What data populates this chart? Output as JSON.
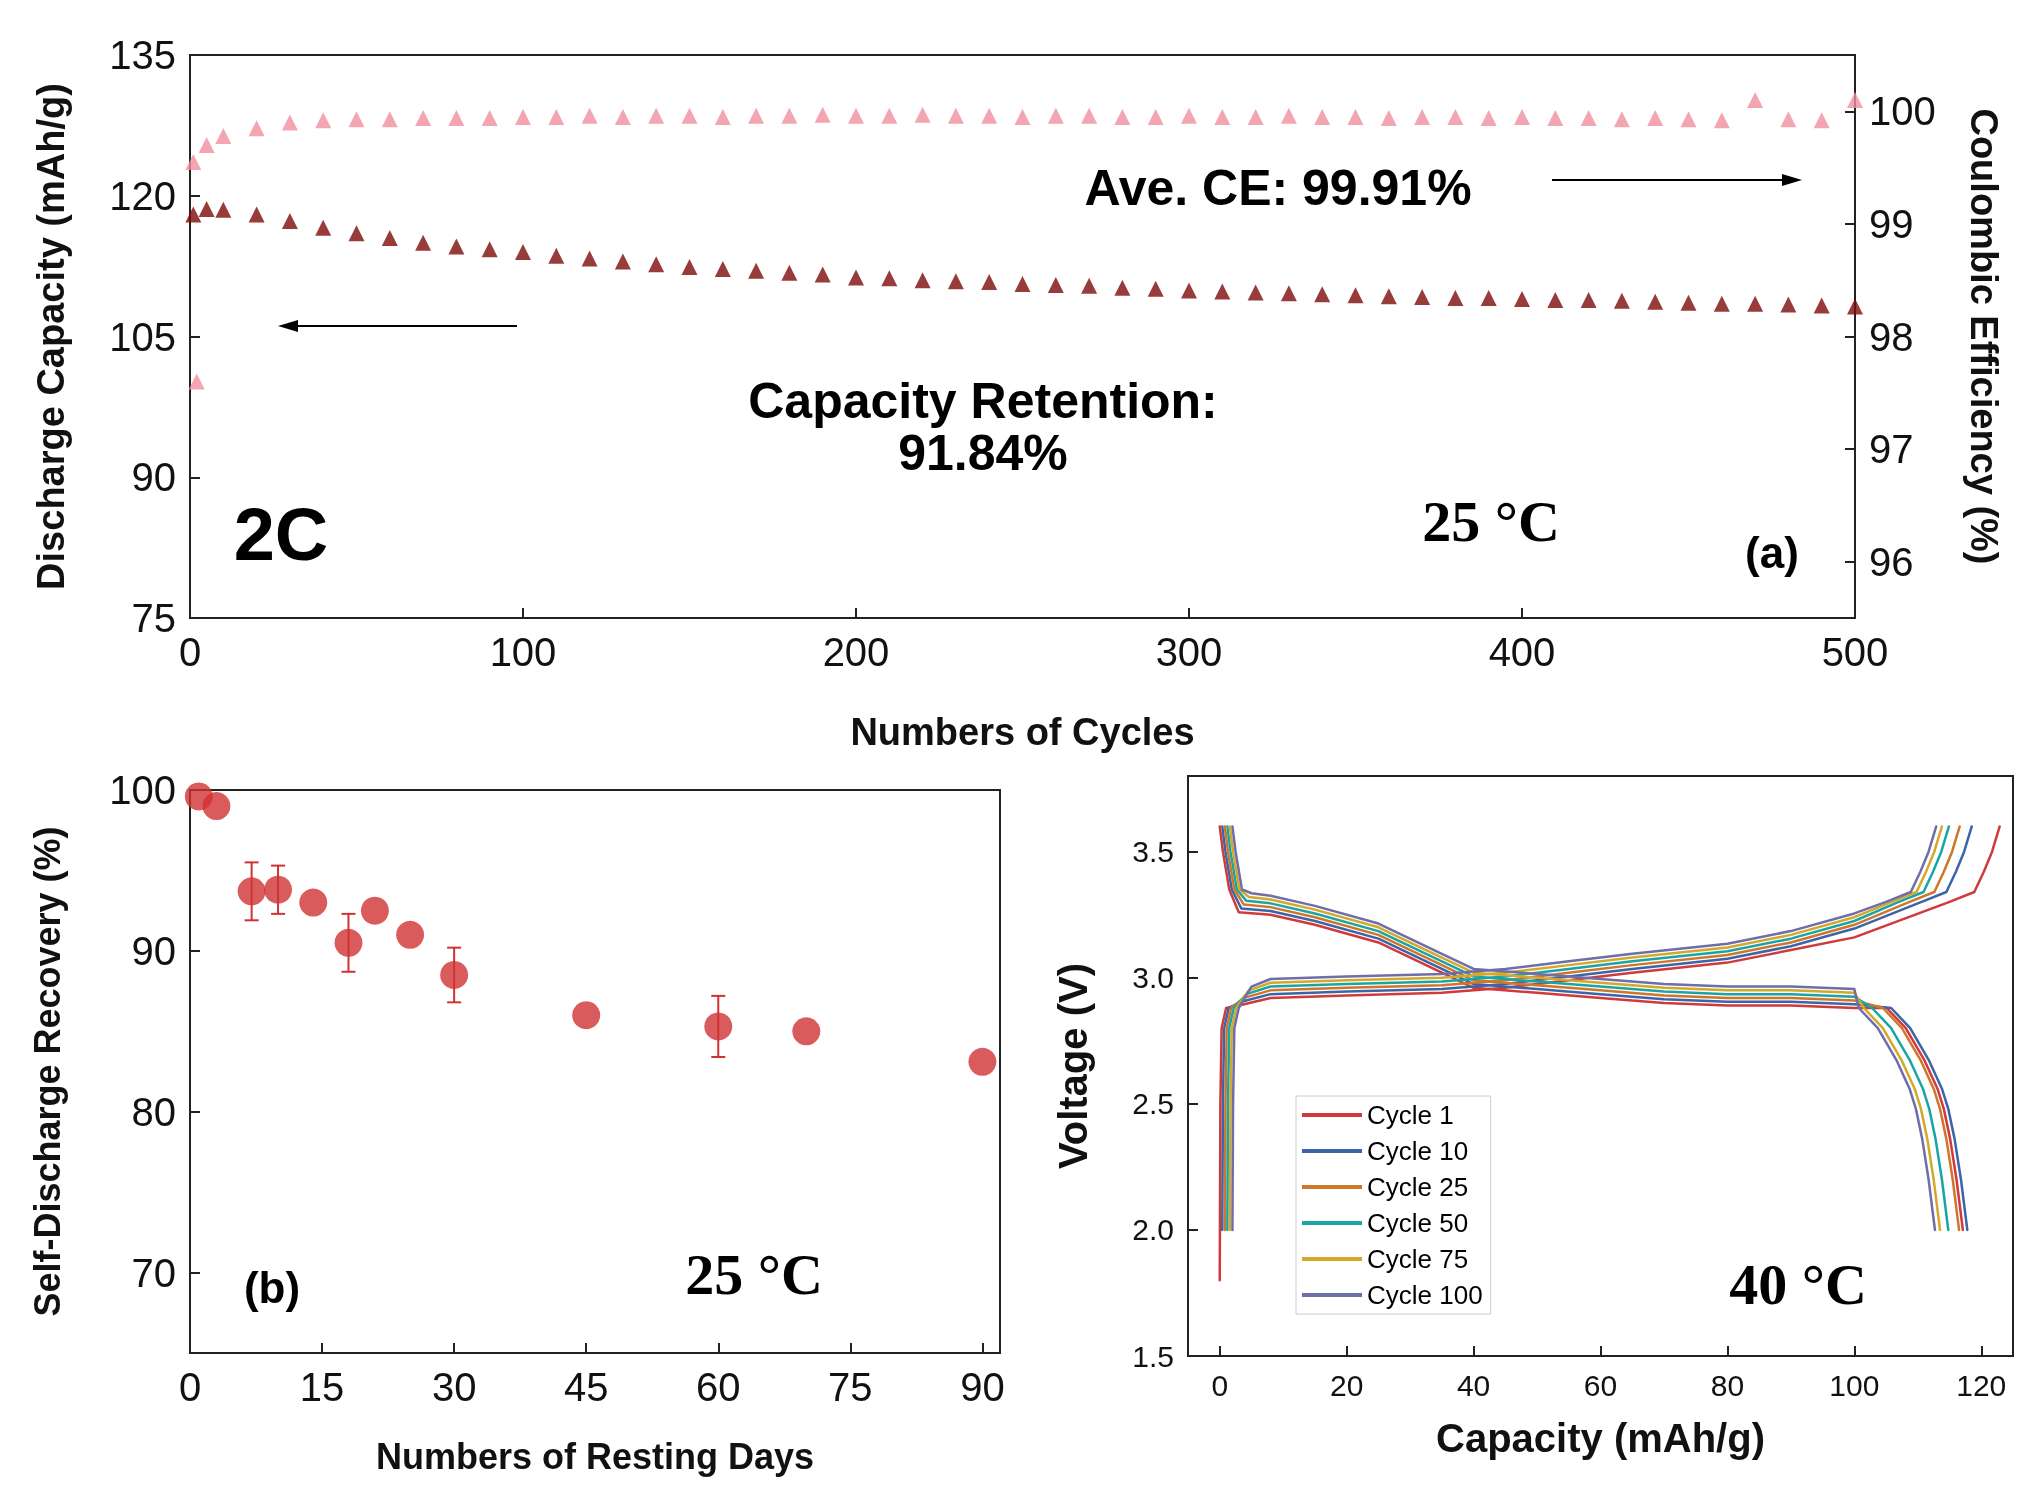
{
  "chart_data": [
    {
      "type": "scatter",
      "xlabel": "Numbers of Cycles",
      "ylabel": "Discharge Capacity (mAh/g)",
      "y2label": "Coulombic Efficiency (%)",
      "marker": "triangle",
      "xlim": [
        0,
        500
      ],
      "xticks": [
        0,
        100,
        200,
        300,
        400,
        500
      ],
      "ylim": [
        75,
        135
      ],
      "yticks": [
        75,
        90,
        105,
        120,
        135
      ],
      "y2lim": [
        95.5,
        100.5
      ],
      "y2ticks": [
        96,
        97,
        98,
        99,
        100
      ],
      "annotations": [
        "Ave. CE: 99.91%",
        "Capacity Retention:\n91.84%",
        "2C",
        "25 °C",
        "(a)"
      ],
      "series": [
        {
          "color": "#7d0a0a",
          "x": [
            1,
            5,
            10,
            20,
            30,
            40,
            50,
            60,
            70,
            80,
            90,
            100,
            110,
            120,
            130,
            140,
            150,
            160,
            170,
            180,
            190,
            200,
            210,
            220,
            230,
            240,
            250,
            260,
            270,
            280,
            290,
            300,
            310,
            320,
            330,
            340,
            350,
            360,
            370,
            380,
            390,
            400,
            410,
            420,
            430,
            440,
            450,
            460,
            470,
            480,
            490,
            500
          ],
          "values": [
            118.0,
            118.6,
            118.5,
            118.0,
            117.3,
            116.6,
            116.0,
            115.5,
            115.0,
            114.6,
            114.3,
            114.0,
            113.6,
            113.3,
            113.0,
            112.7,
            112.4,
            112.2,
            112.0,
            111.8,
            111.6,
            111.3,
            111.2,
            111.0,
            110.9,
            110.8,
            110.6,
            110.5,
            110.4,
            110.2,
            110.1,
            109.9,
            109.8,
            109.7,
            109.6,
            109.5,
            109.4,
            109.3,
            109.2,
            109.1,
            109.1,
            109.0,
            108.9,
            108.9,
            108.8,
            108.7,
            108.6,
            108.5,
            108.5,
            108.4,
            108.3,
            108.2
          ]
        },
        {
          "color": "#f0909f",
          "axis": "y2",
          "x": [
            1,
            2,
            5,
            10,
            20,
            30,
            40,
            50,
            60,
            70,
            80,
            90,
            100,
            110,
            120,
            130,
            140,
            150,
            160,
            170,
            180,
            190,
            200,
            210,
            220,
            230,
            240,
            250,
            260,
            270,
            280,
            290,
            300,
            310,
            320,
            330,
            340,
            350,
            360,
            370,
            380,
            390,
            400,
            410,
            420,
            430,
            440,
            450,
            460,
            470,
            480,
            490,
            500
          ],
          "values": [
            99.55,
            97.6,
            99.7,
            99.78,
            99.85,
            99.9,
            99.92,
            99.93,
            99.93,
            99.94,
            99.94,
            99.94,
            99.95,
            99.95,
            99.96,
            99.95,
            99.96,
            99.96,
            99.95,
            99.96,
            99.96,
            99.97,
            99.96,
            99.96,
            99.97,
            99.96,
            99.96,
            99.95,
            99.96,
            99.96,
            99.95,
            99.95,
            99.96,
            99.95,
            99.95,
            99.96,
            99.95,
            99.95,
            99.94,
            99.95,
            99.95,
            99.94,
            99.95,
            99.94,
            99.94,
            99.93,
            99.94,
            99.93,
            99.92,
            100.1,
            99.93,
            99.92,
            100.1
          ]
        }
      ]
    },
    {
      "type": "scatter",
      "xlabel": "Numbers of Resting Days",
      "ylabel": "Self-Discharge Recovery (%)",
      "marker": "circle",
      "xlim": [
        0,
        92
      ],
      "xticks": [
        0,
        15,
        30,
        45,
        60,
        75,
        90
      ],
      "ylim": [
        65,
        100
      ],
      "yticks": [
        70,
        80,
        90,
        100
      ],
      "annotations": [
        "(b)",
        "25 °C"
      ],
      "x": [
        1,
        3,
        7,
        10,
        14,
        18,
        21,
        25,
        30,
        45,
        60,
        70,
        90
      ],
      "series": [
        {
          "color": "#d03232",
          "values": [
            99.6,
            99.0,
            93.7,
            93.8,
            93.0,
            90.5,
            92.5,
            91.0,
            88.5,
            86.0,
            85.3,
            85.0,
            83.1
          ],
          "errors": [
            null,
            null,
            1.8,
            1.5,
            null,
            1.8,
            null,
            null,
            1.7,
            null,
            1.9,
            null,
            null
          ]
        }
      ]
    },
    {
      "type": "line",
      "xlabel": "Capacity (mAh/g)",
      "ylabel": "Voltage (V)",
      "marker": "none",
      "line_style": "solid",
      "legend": "bottom left",
      "xlim": [
        -5,
        125
      ],
      "xticks": [
        0,
        20,
        40,
        60,
        80,
        100,
        120
      ],
      "ylim": [
        1.5,
        3.8
      ],
      "yticks": [
        {
          "value": 1.5,
          "label": "1.5"
        },
        {
          "value": 2,
          "label": "2.0"
        },
        {
          "value": 2.5,
          "label": "2.5"
        },
        {
          "value": 3,
          "label": "3.0"
        },
        {
          "value": 3.5,
          "label": "3.5"
        }
      ],
      "annotations": [
        "40 °C"
      ],
      "series": [
        {
          "name": "Cycle 1",
          "color": "#d03a3a",
          "x": [
            0,
            0.5,
            1.5,
            3,
            8,
            15,
            25,
            35,
            40,
            50,
            60,
            70,
            80,
            90,
            100,
            105.1,
            108.1,
            111.1,
            113.1,
            114.1,
            115.1,
            116.1,
            117.1
          ],
          "values": [
            3.6,
            3.5,
            3.35,
            3.26,
            3.25,
            3.21,
            3.14,
            3.02,
            2.96,
            2.94,
            2.92,
            2.9,
            2.89,
            2.89,
            2.88,
            2.88,
            2.8,
            2.67,
            2.56,
            2.48,
            2.36,
            2.2,
            2.0
          ]
        },
        {
          "color": "#d03a3a",
          "x": [
            0,
            0.1,
            0.3,
            1,
            3,
            8,
            20,
            35,
            45,
            55,
            65,
            80,
            90,
            100,
            114.9,
            118.9,
            120.4,
            121.7,
            122.9
          ],
          "values": [
            1.8,
            2.5,
            2.8,
            2.88,
            2.89,
            2.92,
            2.93,
            2.94,
            2.96,
            2.99,
            3.02,
            3.06,
            3.11,
            3.16,
            3.3,
            3.34,
            3.42,
            3.5,
            3.6
          ]
        },
        {
          "name": "Cycle 10",
          "color": "#3a65a8",
          "x": [
            0.4,
            0.9,
            1.9,
            3.4,
            8,
            15,
            25,
            35,
            40,
            50,
            60,
            70,
            80,
            90,
            100,
            105.8,
            108.8,
            111.8,
            113.8,
            114.8,
            115.8,
            116.8,
            117.8
          ],
          "values": [
            3.6,
            3.5,
            3.35,
            3.275,
            3.265,
            3.225,
            3.155,
            3.035,
            2.975,
            2.955,
            2.935,
            2.915,
            2.905,
            2.905,
            2.895,
            2.88,
            2.8,
            2.67,
            2.56,
            2.48,
            2.36,
            2.2,
            2.0
          ]
        },
        {
          "color": "#3a65a8",
          "x": [
            0.4,
            0.5,
            0.7,
            1.4,
            3.4,
            8,
            20,
            35,
            45,
            55,
            65,
            80,
            90,
            100,
            110.5,
            114.5,
            116,
            117.3,
            118.5
          ],
          "values": [
            2.0,
            2.5,
            2.8,
            2.88,
            2.905,
            2.935,
            2.945,
            2.955,
            2.975,
            3.005,
            3.035,
            3.075,
            3.125,
            3.195,
            3.3,
            3.34,
            3.42,
            3.5,
            3.6
          ]
        },
        {
          "name": "Cycle 25",
          "color": "#d0762a",
          "x": [
            0.8,
            1.3,
            2.3,
            3.8,
            8,
            15,
            25,
            35,
            40,
            50,
            60,
            70,
            80,
            90,
            100,
            104.5,
            107.5,
            110.5,
            112.5,
            113.5,
            114.5,
            115.5,
            116.5
          ],
          "values": [
            3.6,
            3.5,
            3.35,
            3.29,
            3.28,
            3.24,
            3.17,
            3.05,
            2.99,
            2.97,
            2.95,
            2.93,
            2.92,
            2.92,
            2.91,
            2.88,
            2.8,
            2.67,
            2.56,
            2.48,
            2.36,
            2.2,
            2.0
          ]
        },
        {
          "color": "#d0762a",
          "x": [
            0.8,
            0.9,
            1.1,
            1.8,
            3.8,
            8,
            20,
            35,
            45,
            55,
            65,
            80,
            90,
            100,
            108.6,
            112.6,
            114.1,
            115.4,
            116.6
          ],
          "values": [
            2.0,
            2.5,
            2.8,
            2.88,
            2.92,
            2.95,
            2.96,
            2.97,
            2.99,
            3.02,
            3.05,
            3.09,
            3.14,
            3.21,
            3.3,
            3.34,
            3.42,
            3.5,
            3.6
          ]
        },
        {
          "name": "Cycle 50",
          "color": "#1aa5a5",
          "x": [
            1.2,
            1.7,
            2.7,
            4.2,
            8,
            15,
            25,
            35,
            40,
            50,
            60,
            70,
            80,
            90,
            100,
            102.8,
            105.8,
            108.8,
            110.8,
            111.8,
            112.8,
            113.8,
            114.8
          ],
          "values": [
            3.6,
            3.5,
            3.35,
            3.305,
            3.295,
            3.255,
            3.185,
            3.065,
            3.005,
            2.985,
            2.965,
            2.945,
            2.935,
            2.935,
            2.925,
            2.88,
            2.8,
            2.67,
            2.56,
            2.48,
            2.36,
            2.2,
            2.0
          ]
        },
        {
          "color": "#1aa5a5",
          "x": [
            1.2,
            1.3,
            1.5,
            2.2,
            4.2,
            8,
            20,
            35,
            45,
            55,
            65,
            80,
            90,
            100,
            106.9,
            110.9,
            112.4,
            113.7,
            114.9
          ],
          "values": [
            2.0,
            2.5,
            2.8,
            2.88,
            2.935,
            2.965,
            2.975,
            2.985,
            3.005,
            3.035,
            3.065,
            3.105,
            3.155,
            3.225,
            3.3,
            3.34,
            3.42,
            3.5,
            3.6
          ]
        },
        {
          "name": "Cycle 75",
          "color": "#d4a82a",
          "x": [
            1.6,
            2.1,
            3.1,
            4.6,
            8,
            15,
            25,
            35,
            40,
            50,
            60,
            70,
            80,
            90,
            100,
            101.5,
            104.5,
            107.5,
            109.5,
            110.5,
            111.5,
            112.5,
            113.5
          ],
          "values": [
            3.6,
            3.5,
            3.35,
            3.32,
            3.31,
            3.27,
            3.2,
            3.08,
            3.02,
            3.0,
            2.98,
            2.96,
            2.95,
            2.95,
            2.94,
            2.88,
            2.8,
            2.67,
            2.56,
            2.48,
            2.36,
            2.2,
            2.0
          ]
        },
        {
          "color": "#d4a82a",
          "x": [
            1.6,
            1.7,
            1.9,
            2.6,
            4.6,
            8,
            20,
            35,
            45,
            55,
            65,
            80,
            90,
            100,
            105.8,
            109.8,
            111.3,
            112.6,
            113.8
          ],
          "values": [
            2.0,
            2.5,
            2.8,
            2.88,
            2.95,
            2.98,
            2.99,
            3.0,
            3.02,
            3.05,
            3.08,
            3.12,
            3.17,
            3.24,
            3.3,
            3.34,
            3.42,
            3.5,
            3.6
          ]
        },
        {
          "name": "Cycle 100",
          "color": "#6e6ea8",
          "x": [
            2.0,
            2.5,
            3.5,
            5.0,
            8,
            15,
            25,
            35,
            40,
            50,
            60,
            70,
            80,
            90,
            100,
            100.7,
            103.7,
            106.7,
            108.7,
            109.7,
            110.7,
            111.7,
            112.7
          ],
          "values": [
            3.6,
            3.5,
            3.35,
            3.335,
            3.325,
            3.285,
            3.215,
            3.095,
            3.035,
            3.015,
            2.995,
            2.975,
            2.965,
            2.965,
            2.955,
            2.88,
            2.8,
            2.67,
            2.56,
            2.48,
            2.36,
            2.2,
            2.0
          ]
        },
        {
          "color": "#6e6ea8",
          "x": [
            2.0,
            2.1,
            2.3,
            3.0,
            5.0,
            8,
            20,
            35,
            45,
            55,
            65,
            80,
            90,
            100,
            104.9,
            108.9,
            110.4,
            111.7,
            112.9
          ],
          "values": [
            2.0,
            2.5,
            2.8,
            2.88,
            2.965,
            2.995,
            3.005,
            3.015,
            3.035,
            3.065,
            3.095,
            3.135,
            3.185,
            3.255,
            3.3,
            3.34,
            3.42,
            3.5,
            3.6
          ]
        }
      ]
    }
  ]
}
